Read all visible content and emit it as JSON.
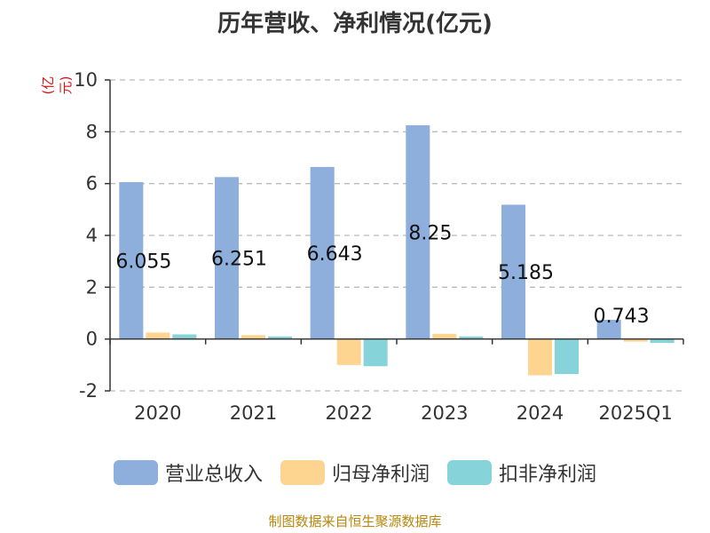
{
  "title": "历年营收、净利情况(亿元)",
  "unit_label": "(亿元)",
  "source": "制图数据来自恒生聚源数据库",
  "colors": {
    "revenue": "#8eaedb",
    "parent_net_profit": "#fdd591",
    "deducted_net_profit": "#86d4d9",
    "grid": "#bbbbbb",
    "axis": "#333333",
    "unit": "#e01010",
    "source": "#b8860b"
  },
  "chart_data": {
    "type": "bar",
    "title": "历年营收、净利情况(亿元)",
    "ylabel": "(亿元)",
    "xlabel": "",
    "categories": [
      "2020",
      "2021",
      "2022",
      "2023",
      "2024",
      "2025Q1"
    ],
    "series": [
      {
        "name": "营业总收入",
        "values": [
          6.055,
          6.251,
          6.643,
          8.25,
          5.185,
          0.743
        ],
        "labels": [
          "6.055",
          "6.251",
          "6.643",
          "8.25",
          "5.185",
          "0.743"
        ]
      },
      {
        "name": "归母净利润",
        "values": [
          0.25,
          0.15,
          -1.0,
          0.2,
          -1.4,
          -0.1
        ]
      },
      {
        "name": "扣非净利润",
        "values": [
          0.18,
          0.1,
          -1.05,
          0.1,
          -1.35,
          -0.15
        ]
      }
    ],
    "ylim": [
      -2,
      10
    ],
    "yticks": [
      "-2",
      "0",
      "2",
      "4",
      "6",
      "8",
      "10"
    ],
    "grid": true,
    "legend": "bottom"
  }
}
